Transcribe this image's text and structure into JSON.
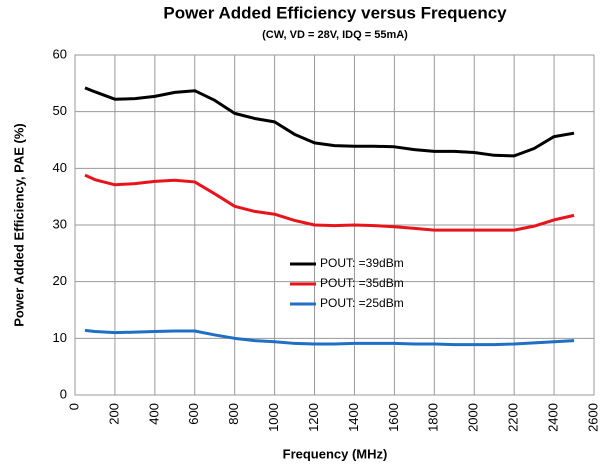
{
  "chart_data": {
    "type": "line",
    "title": "Power Added Efficiency versus Frequency",
    "subtitle": "(CW, VD = 28V, IDQ = 55mA)",
    "x_label": "Frequency (MHz)",
    "y_label": "Power Added Efficiency, PAE (%)",
    "x": [
      50,
      100,
      200,
      300,
      400,
      500,
      600,
      700,
      800,
      900,
      1000,
      1100,
      1200,
      1300,
      1400,
      1500,
      1600,
      1700,
      1800,
      1900,
      2000,
      2100,
      2200,
      2300,
      2400,
      2500
    ],
    "series": [
      {
        "name": "POUT: =39dBm",
        "color": "#000000",
        "values": [
          54.2,
          53.5,
          52.2,
          52.3,
          52.7,
          53.4,
          53.7,
          52.0,
          49.7,
          48.8,
          48.2,
          46.0,
          44.5,
          44.0,
          43.9,
          43.9,
          43.8,
          43.3,
          43.0,
          43.0,
          42.8,
          42.3,
          42.2,
          43.5,
          45.6,
          46.2
        ]
      },
      {
        "name": "POUT: =35dBm",
        "color": "#e8141b",
        "values": [
          38.8,
          38.0,
          37.1,
          37.3,
          37.7,
          37.9,
          37.6,
          35.5,
          33.3,
          32.4,
          31.9,
          30.8,
          30.0,
          29.9,
          30.0,
          29.9,
          29.7,
          29.4,
          29.1,
          29.1,
          29.1,
          29.1,
          29.1,
          29.8,
          30.9,
          31.7
        ]
      },
      {
        "name": "POUT: =25dBm",
        "color": "#1f6fc5",
        "values": [
          11.4,
          11.2,
          11.0,
          11.1,
          11.2,
          11.3,
          11.3,
          10.6,
          10.0,
          9.6,
          9.4,
          9.1,
          9.0,
          9.0,
          9.1,
          9.1,
          9.1,
          9.0,
          9.0,
          8.9,
          8.9,
          8.9,
          9.0,
          9.2,
          9.4,
          9.6
        ]
      }
    ],
    "xlim": [
      0,
      2600
    ],
    "xticks": [
      0,
      200,
      400,
      600,
      800,
      1000,
      1200,
      1400,
      1600,
      1800,
      2000,
      2200,
      2400,
      2600
    ],
    "ylim": [
      0,
      60
    ],
    "yticks": [
      0,
      10,
      20,
      30,
      40,
      50,
      60
    ],
    "grid": true,
    "legend": "center"
  }
}
